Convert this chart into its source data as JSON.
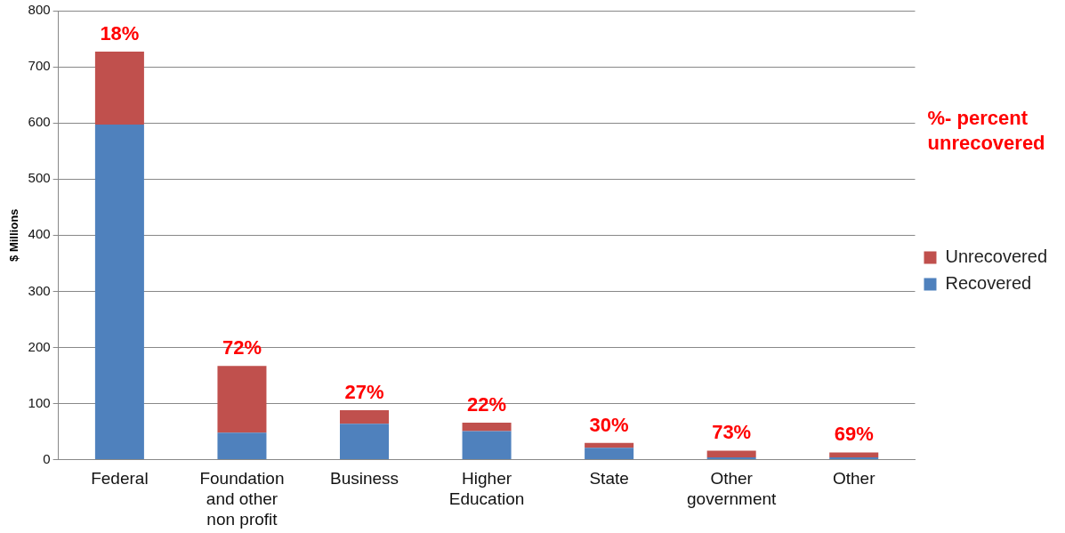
{
  "chart_data": {
    "type": "bar",
    "stacked": true,
    "ylabel": "$ Millions",
    "categories": [
      "Federal",
      "Foundation and other non profit",
      "Business",
      "Higher Education",
      "State",
      "Other government",
      "Other"
    ],
    "series": [
      {
        "name": "Recovered",
        "color": "#4f81bd",
        "values": [
          597,
          48,
          64,
          51,
          21,
          4,
          4
        ]
      },
      {
        "name": "Unrecovered",
        "color": "#c0504d",
        "values": [
          130,
          119,
          24,
          15,
          9,
          12,
          9
        ]
      }
    ],
    "ylim": [
      0,
      800
    ],
    "yticks": [
      0,
      100,
      200,
      300,
      400,
      500,
      600,
      700,
      800
    ],
    "grid": "y",
    "legend": "right",
    "annotations": [
      {
        "text": "18%",
        "x": "Federal",
        "y": 727
      },
      {
        "text": "72%",
        "x": "Foundation and other non profit",
        "y": 167
      },
      {
        "text": "27%",
        "x": "Business",
        "y": 88
      },
      {
        "text": "22%",
        "x": "Higher Education",
        "y": 66
      },
      {
        "text": "30%",
        "x": "State",
        "y": 30
      },
      {
        "text": "73%",
        "x": "Other government",
        "y": 16.5
      },
      {
        "text": "69%",
        "x": "Other",
        "y": 13
      },
      "%- percent unrecovered"
    ]
  }
}
